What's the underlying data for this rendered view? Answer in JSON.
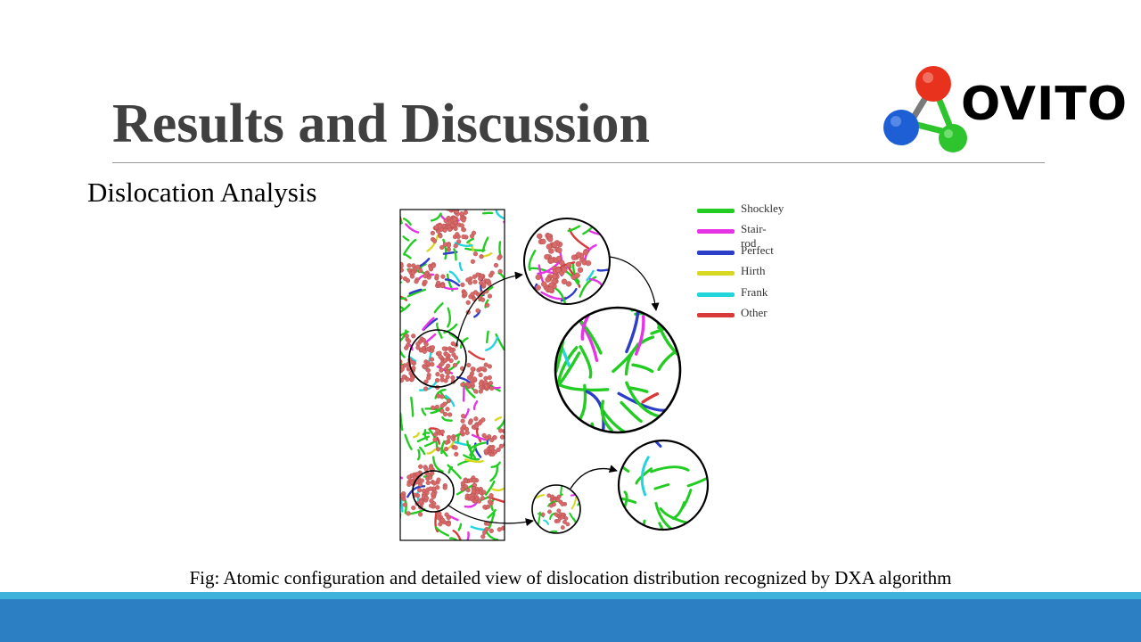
{
  "slide": {
    "title": "Results and Discussion",
    "subtitle": "Dislocation Analysis",
    "caption": "Fig: Atomic configuration and detailed view of dislocation distribution recognized by DXA algorithm"
  },
  "logo": {
    "text": "OVITO",
    "icon": "ovito-molecule-logo",
    "atom_colors": [
      "#e8321e",
      "#1f5fd6",
      "#2dc42d"
    ]
  },
  "legend": {
    "items": [
      {
        "label": "Shockley",
        "color": "#22cc22"
      },
      {
        "label": "Stair-rod",
        "color": "#e633e6"
      },
      {
        "label": "Perfect",
        "color": "#2c3dc8"
      },
      {
        "label": "Hirth",
        "color": "#d8d822"
      },
      {
        "label": "Frank",
        "color": "#22d4dc"
      },
      {
        "label": "Other",
        "color": "#d83a3a"
      }
    ]
  },
  "figure": {
    "atom_color": "#d96a6a",
    "background": "#ffffff"
  },
  "theme": {
    "title_color": "#404040",
    "footer_color": "#2b7fc2",
    "footer_accent": "#3fb2dc"
  }
}
